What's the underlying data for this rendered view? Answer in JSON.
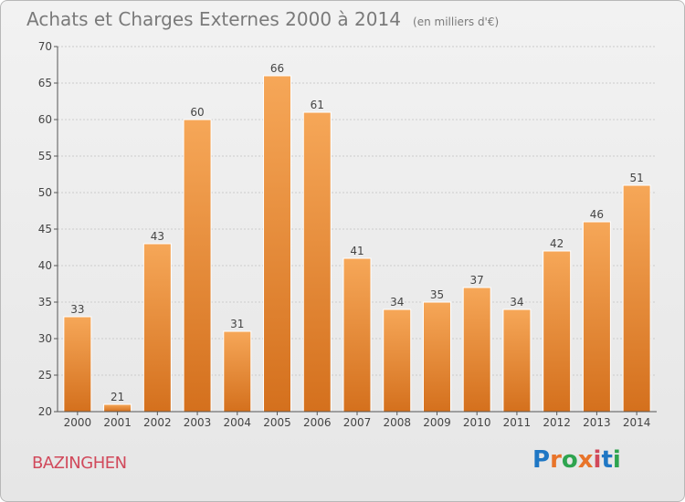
{
  "header": {
    "title": "Achats et Charges Externes 2000 à 2014",
    "subtitle": "(en milliers d'€)"
  },
  "footer": {
    "commune": "BAZINGHEN",
    "brand": "Proxiti",
    "brand_colors": [
      "#1f77c4",
      "#e8742a",
      "#2ea44f",
      "#e8742a",
      "#d1495b",
      "#1f77c4",
      "#2ea44f"
    ]
  },
  "colors": {
    "bar_light": "#f6a758",
    "bar_dark": "#d4701d",
    "axis": "#555555",
    "grid": "#cccccc",
    "text": "#444444"
  },
  "chart_data": {
    "type": "bar",
    "title": "Achats et Charges Externes 2000 à 2014",
    "subtitle": "(en milliers d'€)",
    "categories": [
      "2000",
      "2001",
      "2002",
      "2003",
      "2004",
      "2005",
      "2006",
      "2007",
      "2008",
      "2009",
      "2010",
      "2011",
      "2012",
      "2013",
      "2014"
    ],
    "values": [
      33,
      21,
      43,
      60,
      31,
      66,
      61,
      41,
      34,
      35,
      37,
      34,
      42,
      46,
      51
    ],
    "ylim": [
      20,
      70
    ],
    "yticks": [
      20,
      25,
      30,
      35,
      40,
      45,
      50,
      55,
      60,
      65,
      70
    ],
    "grid": true,
    "data_labels": true
  }
}
